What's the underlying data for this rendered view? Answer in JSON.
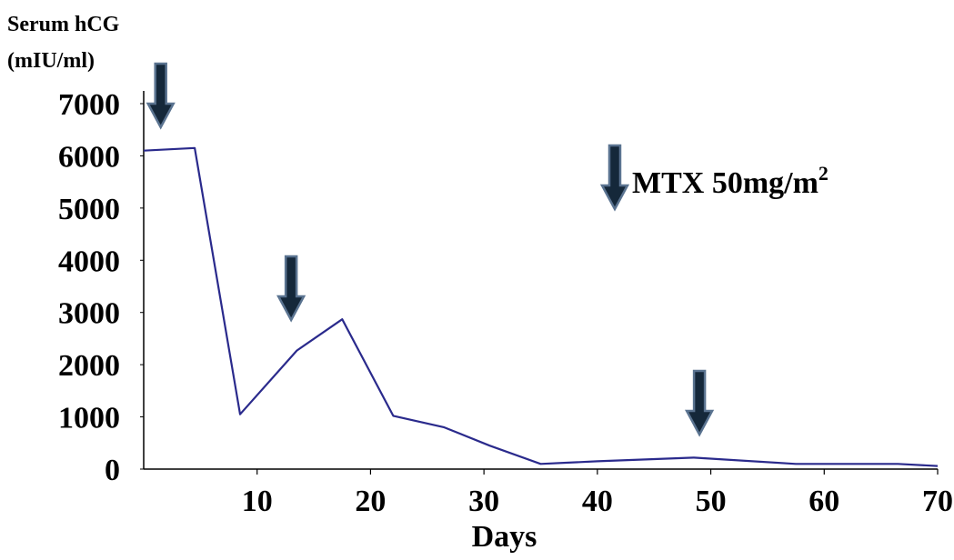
{
  "chart_data": {
    "type": "line",
    "ylabel_lines": [
      "Serum hCG",
      "(mIU/ml)"
    ],
    "xlabel": "Days",
    "xlim": [
      0,
      70
    ],
    "ylim": [
      0,
      7000
    ],
    "x_ticks": [
      10,
      20,
      30,
      40,
      50,
      60,
      70
    ],
    "y_ticks": [
      0,
      1000,
      2000,
      3000,
      4000,
      5000,
      6000,
      7000
    ],
    "series": [
      {
        "color": "#2a2a8c",
        "x": [
          0,
          4.5,
          8.5,
          13.5,
          17.5,
          22,
          26.5,
          30.5,
          35,
          40,
          48.5,
          57.5,
          66.5,
          70
        ],
        "y": [
          6100,
          6150,
          1050,
          2270,
          2870,
          1020,
          800,
          450,
          100,
          150,
          220,
          100,
          100,
          60
        ]
      }
    ],
    "annotations": {
      "marker": "down-arrow",
      "marker_color": "#15283a",
      "marker_outline": "#5a7390",
      "arrows_at_days": [
        1.5,
        13,
        49
      ],
      "legend_label": "MTX 50mg/m",
      "legend_superscript": "2"
    }
  }
}
